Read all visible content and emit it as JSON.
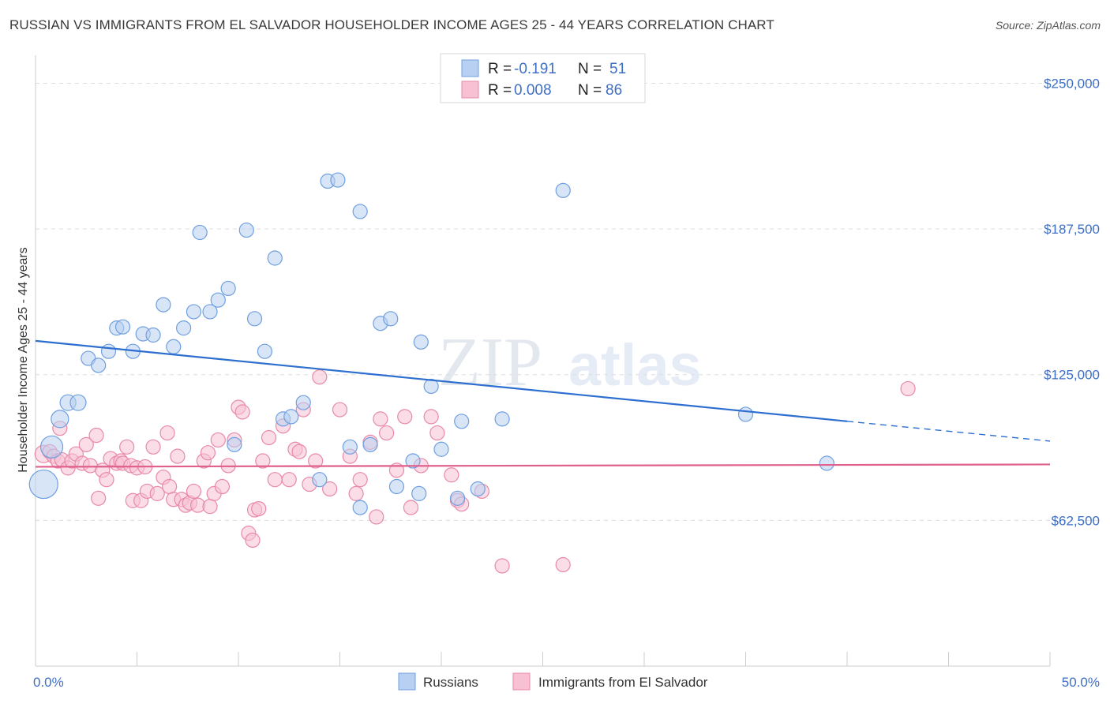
{
  "title": "RUSSIAN VS IMMIGRANTS FROM EL SALVADOR HOUSEHOLDER INCOME AGES 25 - 44 YEARS CORRELATION CHART",
  "source": "Source: ZipAtlas.com",
  "watermark": {
    "zip": "ZIP",
    "atlas": "atlas"
  },
  "colors": {
    "russians_fill": "#b8d0f1",
    "russians_stroke": "#6f9fe0",
    "russians_line": "#2d6fd0",
    "salvador_fill": "#f7c1d3",
    "salvador_stroke": "#e889a9",
    "salvador_line": "#e0608c",
    "axis_text": "#3f6fc4",
    "grid": "#dddddd"
  },
  "legend_top": {
    "row1": {
      "r_label": "R =",
      "r_value": "-0.191",
      "n_label": "N =",
      "n_value": "51"
    },
    "row2": {
      "r_label": "R =",
      "r_value": "0.008",
      "n_label": "N =",
      "n_value": "86"
    }
  },
  "chart_data": {
    "type": "scatter",
    "title": "RUSSIAN VS IMMIGRANTS FROM EL SALVADOR HOUSEHOLDER INCOME AGES 25 - 44 YEARS CORRELATION CHART",
    "xlabel": "",
    "ylabel": "Householder Income Ages 25 - 44 years",
    "xlim": [
      0,
      50
    ],
    "ylim": [
      0,
      262000
    ],
    "x_tick_labels": [
      "0.0%",
      "50.0%"
    ],
    "y_ticks": [
      62500,
      125000,
      187500,
      250000
    ],
    "y_tick_labels": [
      "$62,500",
      "$125,000",
      "$187,500",
      "$250,000"
    ],
    "grid": true,
    "legend_position": "top-center",
    "series": [
      {
        "name": "Russians",
        "r": -0.191,
        "n": 51,
        "trend": {
          "x0": 0,
          "y0": 139500,
          "x1": 40,
          "y1": 105000,
          "dash_to_x": 50,
          "dash_to_y": 96500
        },
        "points": [
          [
            0.8,
            94000,
            14
          ],
          [
            0.4,
            78000,
            18
          ],
          [
            1.2,
            106000,
            11
          ],
          [
            1.6,
            113000,
            10
          ],
          [
            2.1,
            113000,
            10
          ],
          [
            2.6,
            132000,
            9
          ],
          [
            3.1,
            129000,
            9
          ],
          [
            3.6,
            135000,
            9
          ],
          [
            4.0,
            145000,
            9
          ],
          [
            4.3,
            145500,
            9
          ],
          [
            4.8,
            135000,
            9
          ],
          [
            5.3,
            142500,
            9
          ],
          [
            5.8,
            142000,
            9
          ],
          [
            6.3,
            155000,
            9
          ],
          [
            6.8,
            137000,
            9
          ],
          [
            7.3,
            145000,
            9
          ],
          [
            7.8,
            152000,
            9
          ],
          [
            8.1,
            186000,
            9
          ],
          [
            8.6,
            152000,
            9
          ],
          [
            9.0,
            157000,
            9
          ],
          [
            9.5,
            162000,
            9
          ],
          [
            9.8,
            95000,
            9
          ],
          [
            10.4,
            187000,
            9
          ],
          [
            10.8,
            149000,
            9
          ],
          [
            11.3,
            135000,
            9
          ],
          [
            11.8,
            175000,
            9
          ],
          [
            12.2,
            106000,
            9
          ],
          [
            12.6,
            107000,
            9
          ],
          [
            13.2,
            113000,
            9
          ],
          [
            14.0,
            80000,
            9
          ],
          [
            14.4,
            208000,
            9
          ],
          [
            14.9,
            208500,
            9
          ],
          [
            15.5,
            94000,
            9
          ],
          [
            16.0,
            68000,
            9
          ],
          [
            16.0,
            195000,
            9
          ],
          [
            16.5,
            95000,
            9
          ],
          [
            17.0,
            147000,
            9
          ],
          [
            17.5,
            149000,
            9
          ],
          [
            17.8,
            77000,
            9
          ],
          [
            18.6,
            88000,
            9
          ],
          [
            18.9,
            74000,
            9
          ],
          [
            19.0,
            139000,
            9
          ],
          [
            19.5,
            120000,
            9
          ],
          [
            20.0,
            93000,
            9
          ],
          [
            20.8,
            72000,
            9
          ],
          [
            21.0,
            105000,
            9
          ],
          [
            21.8,
            76000,
            9
          ],
          [
            23.0,
            106000,
            9
          ],
          [
            26.0,
            204000,
            9
          ],
          [
            35.0,
            108000,
            9
          ],
          [
            39.0,
            87000,
            9
          ]
        ]
      },
      {
        "name": "Immigrants from El Salvador",
        "r": 0.008,
        "n": 86,
        "trend": {
          "x0": 0,
          "y0": 85500,
          "x1": 50,
          "y1": 86500
        },
        "points": [
          [
            0.4,
            91000,
            11
          ],
          [
            0.7,
            92000,
            9
          ],
          [
            0.9,
            90000,
            9
          ],
          [
            1.1,
            88000,
            9
          ],
          [
            1.3,
            88500,
            9
          ],
          [
            1.2,
            102000,
            9
          ],
          [
            1.6,
            85000,
            9
          ],
          [
            1.8,
            88000,
            9
          ],
          [
            2.0,
            91000,
            9
          ],
          [
            2.3,
            87000,
            9
          ],
          [
            2.5,
            95000,
            9
          ],
          [
            2.7,
            86000,
            9
          ],
          [
            3.0,
            99000,
            9
          ],
          [
            3.1,
            72000,
            9
          ],
          [
            3.3,
            84000,
            9
          ],
          [
            3.5,
            80000,
            9
          ],
          [
            3.7,
            89000,
            9
          ],
          [
            4.0,
            87000,
            9
          ],
          [
            4.2,
            88000,
            9
          ],
          [
            4.3,
            87000,
            9
          ],
          [
            4.5,
            94000,
            9
          ],
          [
            4.7,
            86000,
            9
          ],
          [
            4.8,
            71000,
            9
          ],
          [
            5.0,
            85000,
            9
          ],
          [
            5.2,
            71000,
            9
          ],
          [
            5.4,
            85500,
            9
          ],
          [
            5.5,
            75000,
            9
          ],
          [
            5.8,
            94000,
            9
          ],
          [
            6.0,
            74000,
            9
          ],
          [
            6.3,
            81000,
            9
          ],
          [
            6.5,
            100000,
            9
          ],
          [
            6.6,
            77000,
            9
          ],
          [
            6.8,
            71500,
            9
          ],
          [
            7.0,
            90000,
            9
          ],
          [
            7.2,
            71500,
            9
          ],
          [
            7.4,
            69000,
            9
          ],
          [
            7.6,
            70000,
            9
          ],
          [
            7.8,
            75000,
            9
          ],
          [
            8.0,
            69000,
            9
          ],
          [
            8.3,
            88000,
            9
          ],
          [
            8.5,
            91500,
            9
          ],
          [
            8.6,
            68500,
            9
          ],
          [
            8.8,
            74000,
            9
          ],
          [
            9.0,
            97000,
            9
          ],
          [
            9.2,
            77000,
            9
          ],
          [
            9.5,
            86000,
            9
          ],
          [
            9.8,
            97000,
            9
          ],
          [
            10.0,
            111000,
            9
          ],
          [
            10.2,
            109000,
            9
          ],
          [
            10.5,
            57000,
            9
          ],
          [
            10.7,
            54000,
            9
          ],
          [
            10.8,
            67000,
            9
          ],
          [
            11.0,
            67500,
            9
          ],
          [
            11.2,
            88000,
            9
          ],
          [
            11.5,
            98000,
            9
          ],
          [
            11.8,
            80000,
            9
          ],
          [
            12.2,
            103000,
            9
          ],
          [
            12.5,
            80000,
            9
          ],
          [
            12.8,
            93000,
            9
          ],
          [
            13.0,
            92000,
            9
          ],
          [
            13.2,
            110000,
            9
          ],
          [
            13.5,
            78000,
            9
          ],
          [
            13.8,
            88000,
            9
          ],
          [
            14.0,
            124000,
            9
          ],
          [
            14.5,
            76000,
            9
          ],
          [
            15.0,
            110000,
            9
          ],
          [
            15.5,
            90000,
            9
          ],
          [
            15.8,
            74000,
            9
          ],
          [
            16.0,
            80000,
            9
          ],
          [
            16.5,
            96000,
            9
          ],
          [
            16.8,
            64000,
            9
          ],
          [
            17.0,
            106000,
            9
          ],
          [
            17.3,
            100000,
            9
          ],
          [
            17.8,
            84000,
            9
          ],
          [
            18.2,
            107000,
            9
          ],
          [
            18.5,
            68000,
            9
          ],
          [
            19.0,
            86000,
            9
          ],
          [
            19.5,
            107000,
            9
          ],
          [
            19.8,
            100000,
            9
          ],
          [
            20.5,
            82000,
            9
          ],
          [
            20.8,
            71000,
            9
          ],
          [
            21.0,
            69500,
            9
          ],
          [
            22.0,
            75000,
            9
          ],
          [
            23.0,
            43000,
            9
          ],
          [
            26.0,
            43500,
            9
          ],
          [
            43.0,
            119000,
            9
          ]
        ]
      }
    ]
  },
  "legend_bottom": {
    "item1": "Russians",
    "item2": "Immigrants from El Salvador"
  }
}
